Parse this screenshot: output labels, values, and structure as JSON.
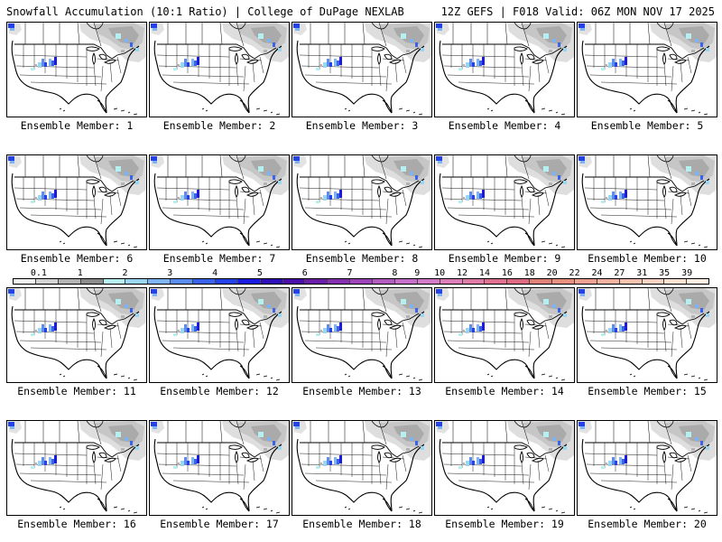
{
  "header": {
    "left_title": "Snowfall Accumulation (10:1 Ratio) | College of DuPage NEXLAB",
    "right_title": "12Z GEFS | F018 Valid: 06Z MON NOV 17 2025"
  },
  "members": [
    "Ensemble Member: 1",
    "Ensemble Member: 2",
    "Ensemble Member: 3",
    "Ensemble Member: 4",
    "Ensemble Member: 5",
    "Ensemble Member: 6",
    "Ensemble Member: 7",
    "Ensemble Member: 8",
    "Ensemble Member: 9",
    "Ensemble Member: 10",
    "Ensemble Member: 11",
    "Ensemble Member: 12",
    "Ensemble Member: 13",
    "Ensemble Member: 14",
    "Ensemble Member: 15",
    "Ensemble Member: 16",
    "Ensemble Member: 17",
    "Ensemble Member: 18",
    "Ensemble Member: 19",
    "Ensemble Member: 20"
  ],
  "colorbar": {
    "labels": [
      "0.1",
      "1",
      "2",
      "3",
      "4",
      "5",
      "6",
      "7",
      "8",
      "9",
      "10",
      "12",
      "14",
      "16",
      "18",
      "20",
      "22",
      "24",
      "27",
      "31",
      "35",
      "39"
    ],
    "colors": [
      "#f0f0f0",
      "#d4d4d4",
      "#b3b3b3",
      "#8c8c8c",
      "#b5efef",
      "#9ad6f2",
      "#7fb4f2",
      "#5b8cf0",
      "#3a63ec",
      "#2442e6",
      "#1a1ae0",
      "#2e0fb8",
      "#4a0fa8",
      "#6a1ea8",
      "#8530b0",
      "#9d45b8",
      "#b25cc2",
      "#c46fca",
      "#d27bc8",
      "#dc7fb8",
      "#e07aa6",
      "#e07090",
      "#dc6a80",
      "#e08078",
      "#e89080",
      "#eea092",
      "#f2b2a0",
      "#f5c2b0",
      "#f8d2c2",
      "#fae2d2",
      "#fdf0e2"
    ]
  }
}
